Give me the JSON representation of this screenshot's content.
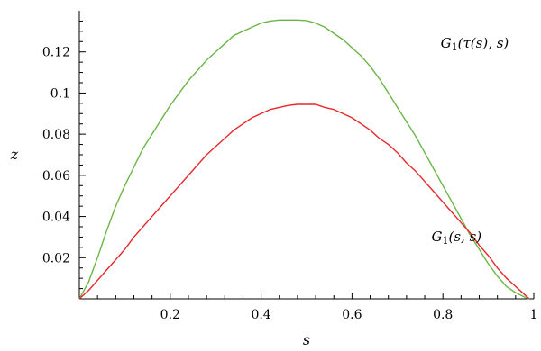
{
  "chart_data": {
    "type": "line",
    "title": "",
    "xlabel": "s",
    "ylabel": "z",
    "xlim": [
      0,
      1.0
    ],
    "ylim": [
      0,
      0.14
    ],
    "x_ticks": [
      {
        "value": 0.2,
        "label": "0.2"
      },
      {
        "value": 0.4,
        "label": "0.4"
      },
      {
        "value": 0.6,
        "label": "0.6"
      },
      {
        "value": 0.8,
        "label": "0.8"
      },
      {
        "value": 1.0,
        "label": "1"
      }
    ],
    "y_ticks": [
      {
        "value": 0.02,
        "label": "0.02"
      },
      {
        "value": 0.04,
        "label": "0.04"
      },
      {
        "value": 0.06,
        "label": "0.06"
      },
      {
        "value": 0.08,
        "label": "0.08"
      },
      {
        "value": 0.1,
        "label": "0.1"
      },
      {
        "value": 0.12,
        "label": "0.12"
      }
    ],
    "grid": false,
    "series": [
      {
        "name": "G1(τ(s), s)",
        "color": "#6ab544",
        "points": [
          [
            0.0,
            0.0
          ],
          [
            0.02,
            0.008
          ],
          [
            0.04,
            0.02
          ],
          [
            0.06,
            0.033
          ],
          [
            0.08,
            0.045
          ],
          [
            0.1,
            0.055
          ],
          [
            0.12,
            0.064
          ],
          [
            0.14,
            0.073
          ],
          [
            0.16,
            0.08
          ],
          [
            0.18,
            0.087
          ],
          [
            0.2,
            0.094
          ],
          [
            0.22,
            0.1
          ],
          [
            0.24,
            0.106
          ],
          [
            0.26,
            0.111
          ],
          [
            0.28,
            0.116
          ],
          [
            0.3,
            0.12
          ],
          [
            0.32,
            0.124
          ],
          [
            0.34,
            0.128
          ],
          [
            0.36,
            0.13
          ],
          [
            0.38,
            0.132
          ],
          [
            0.4,
            0.134
          ],
          [
            0.42,
            0.135
          ],
          [
            0.44,
            0.1355
          ],
          [
            0.46,
            0.1355
          ],
          [
            0.48,
            0.1355
          ],
          [
            0.5,
            0.1352
          ],
          [
            0.52,
            0.134
          ],
          [
            0.54,
            0.132
          ],
          [
            0.56,
            0.129
          ],
          [
            0.58,
            0.126
          ],
          [
            0.6,
            0.122
          ],
          [
            0.62,
            0.118
          ],
          [
            0.64,
            0.113
          ],
          [
            0.66,
            0.107
          ],
          [
            0.68,
            0.1
          ],
          [
            0.7,
            0.093
          ],
          [
            0.72,
            0.086
          ],
          [
            0.74,
            0.079
          ],
          [
            0.76,
            0.071
          ],
          [
            0.78,
            0.063
          ],
          [
            0.8,
            0.055
          ],
          [
            0.82,
            0.047
          ],
          [
            0.84,
            0.039
          ],
          [
            0.86,
            0.031
          ],
          [
            0.88,
            0.024
          ],
          [
            0.9,
            0.017
          ],
          [
            0.92,
            0.011
          ],
          [
            0.94,
            0.006
          ],
          [
            0.96,
            0.003
          ],
          [
            0.98,
            0.0008
          ],
          [
            0.99,
            0.0
          ]
        ]
      },
      {
        "name": "G1(s, s)",
        "color": "#e8262b",
        "points": [
          [
            0.0,
            0.0
          ],
          [
            0.02,
            0.004
          ],
          [
            0.04,
            0.009
          ],
          [
            0.06,
            0.014
          ],
          [
            0.08,
            0.019
          ],
          [
            0.1,
            0.024
          ],
          [
            0.12,
            0.03
          ],
          [
            0.14,
            0.035
          ],
          [
            0.16,
            0.04
          ],
          [
            0.18,
            0.045
          ],
          [
            0.2,
            0.05
          ],
          [
            0.22,
            0.055
          ],
          [
            0.24,
            0.06
          ],
          [
            0.26,
            0.065
          ],
          [
            0.28,
            0.07
          ],
          [
            0.3,
            0.074
          ],
          [
            0.32,
            0.078
          ],
          [
            0.34,
            0.082
          ],
          [
            0.36,
            0.085
          ],
          [
            0.38,
            0.088
          ],
          [
            0.4,
            0.09
          ],
          [
            0.42,
            0.092
          ],
          [
            0.44,
            0.093
          ],
          [
            0.46,
            0.094
          ],
          [
            0.48,
            0.0945
          ],
          [
            0.5,
            0.0945
          ],
          [
            0.52,
            0.0945
          ],
          [
            0.54,
            0.093
          ],
          [
            0.56,
            0.092
          ],
          [
            0.58,
            0.09
          ],
          [
            0.6,
            0.088
          ],
          [
            0.62,
            0.085
          ],
          [
            0.64,
            0.082
          ],
          [
            0.66,
            0.078
          ],
          [
            0.68,
            0.075
          ],
          [
            0.7,
            0.071
          ],
          [
            0.72,
            0.066
          ],
          [
            0.74,
            0.062
          ],
          [
            0.76,
            0.057
          ],
          [
            0.78,
            0.052
          ],
          [
            0.8,
            0.047
          ],
          [
            0.82,
            0.042
          ],
          [
            0.84,
            0.037
          ],
          [
            0.86,
            0.032
          ],
          [
            0.88,
            0.026
          ],
          [
            0.9,
            0.021
          ],
          [
            0.92,
            0.015
          ],
          [
            0.94,
            0.01
          ],
          [
            0.96,
            0.006
          ],
          [
            0.98,
            0.002
          ],
          [
            0.99,
            0.0
          ]
        ]
      }
    ],
    "annotations": [
      {
        "text": "G1(τ(s), s)",
        "series": 0,
        "anchor": [
          0.87,
          0.122
        ]
      },
      {
        "text": "G1(s, s)",
        "series": 1,
        "anchor": [
          0.83,
          0.028
        ]
      }
    ]
  }
}
